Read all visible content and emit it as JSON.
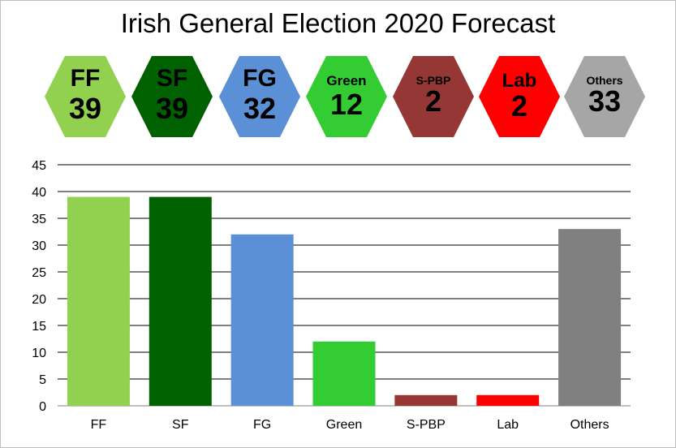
{
  "title": "Irish General Election 2020 Forecast",
  "parties": [
    {
      "name": "FF",
      "seats": "39",
      "color": "#92d050"
    },
    {
      "name": "SF",
      "seats": "39",
      "color": "#006100"
    },
    {
      "name": "FG",
      "seats": "32",
      "color": "#5b8fd6"
    },
    {
      "name": "Green",
      "seats": "12",
      "color": "#33cc33"
    },
    {
      "name": "S-PBP",
      "seats": "2",
      "color": "#953735"
    },
    {
      "name": "Lab",
      "seats": "2",
      "color": "#ff0000"
    },
    {
      "name": "Others",
      "seats": "33",
      "color": "#a6a6a6"
    }
  ],
  "chart_data": {
    "type": "bar",
    "title": "",
    "xlabel": "",
    "ylabel": "",
    "categories": [
      "FF",
      "SF",
      "FG",
      "Green",
      "S-PBP",
      "Lab",
      "Others"
    ],
    "values": [
      39,
      39,
      32,
      12,
      2,
      2,
      33
    ],
    "colors": [
      "#92d050",
      "#006100",
      "#5b8fd6",
      "#33cc33",
      "#953735",
      "#ff0000",
      "#808080"
    ],
    "ylim": [
      0,
      45
    ],
    "yticks": [
      0,
      5,
      10,
      15,
      20,
      25,
      30,
      35,
      40,
      45
    ],
    "grid": true,
    "legend": "none"
  }
}
